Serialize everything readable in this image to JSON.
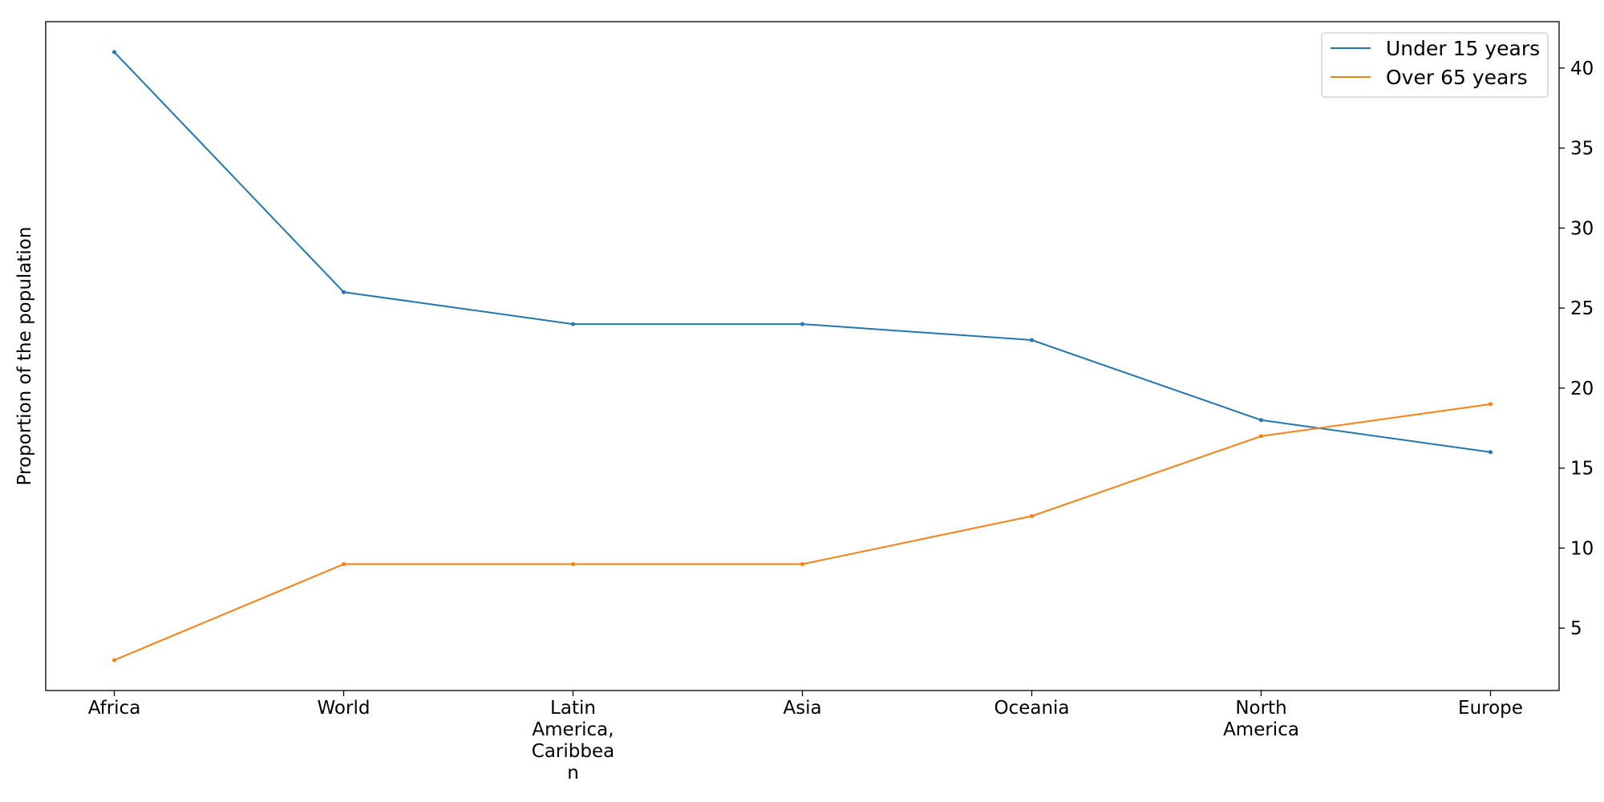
{
  "chart_data": {
    "type": "line",
    "categories": [
      "Africa",
      "World",
      "Latin America, Caribbean",
      "Asia",
      "Oceania",
      "North America",
      "Europe"
    ],
    "category_tick_lines": [
      [
        "Africa"
      ],
      [
        "World"
      ],
      [
        "Latin",
        "America,",
        "Caribbea",
        "n"
      ],
      [
        "Asia"
      ],
      [
        "Oceania"
      ],
      [
        "North",
        "America"
      ],
      [
        "Europe"
      ]
    ],
    "series": [
      {
        "name": "Under 15 years",
        "color": "#1f77b4",
        "values": [
          41,
          26,
          24,
          24,
          23,
          18,
          16
        ]
      },
      {
        "name": "Over 65 years",
        "color": "#ff7f0e",
        "values": [
          3,
          9,
          9,
          9,
          12,
          17,
          19
        ]
      }
    ],
    "ylabel": "Proportion of the population",
    "xlabel": "",
    "ylim": [
      1.1,
      42.9
    ],
    "y_ticks": [
      5,
      10,
      15,
      20,
      25,
      30,
      35,
      40
    ],
    "y_axis_side": "right",
    "grid": false,
    "legend_position": "top-right"
  }
}
